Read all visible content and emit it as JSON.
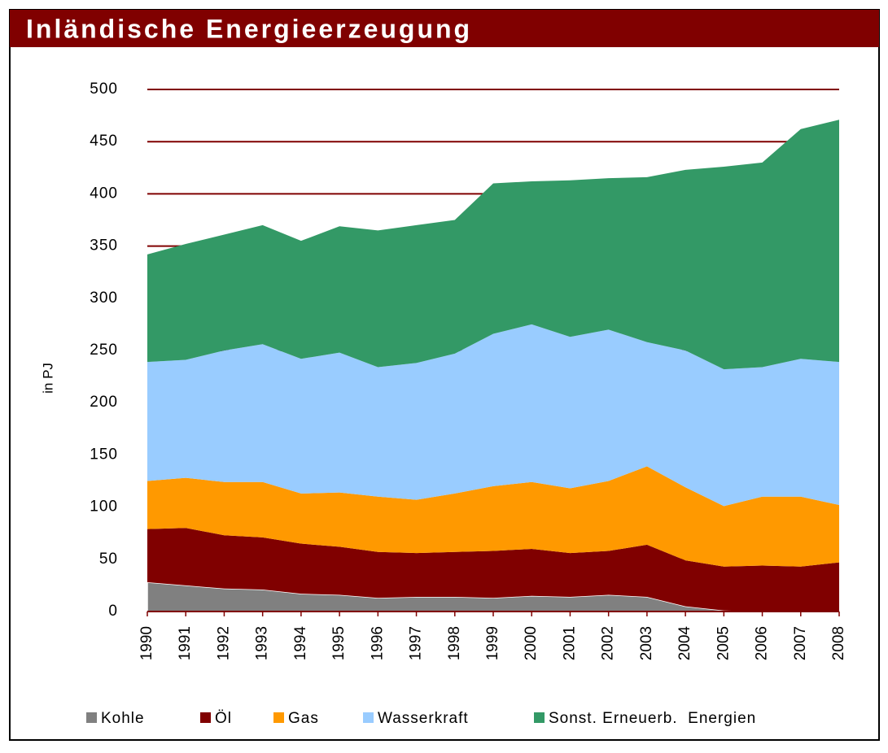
{
  "chart_data": {
    "type": "stacked_area",
    "title": "Inländische Energieerzeugung",
    "y_label": "in PJ",
    "categories": [
      "1990",
      "1991",
      "1992",
      "1993",
      "1994",
      "1995",
      "1996",
      "1997",
      "1998",
      "1999",
      "2000",
      "2001",
      "2002",
      "2003",
      "2004",
      "2005",
      "2006",
      "2007",
      "2008"
    ],
    "series": [
      {
        "name": "Kohle",
        "color": "#808080",
        "values": [
          28,
          25,
          22,
          21,
          17,
          16,
          13,
          14,
          14,
          13,
          15,
          14,
          16,
          14,
          5,
          1,
          0,
          0,
          0
        ]
      },
      {
        "name": "Öl",
        "color": "#800000",
        "values": [
          51,
          55,
          51,
          50,
          48,
          46,
          44,
          42,
          43,
          45,
          45,
          42,
          42,
          50,
          44,
          42,
          44,
          43,
          47
        ]
      },
      {
        "name": "Gas",
        "color": "#ff9900",
        "values": [
          46,
          48,
          51,
          53,
          48,
          52,
          53,
          51,
          56,
          62,
          64,
          62,
          67,
          75,
          70,
          58,
          66,
          67,
          55
        ]
      },
      {
        "name": "Wasserkraft",
        "color": "#99ccff",
        "values": [
          114,
          113,
          126,
          132,
          129,
          134,
          124,
          131,
          134,
          146,
          151,
          145,
          145,
          119,
          131,
          131,
          124,
          132,
          137
        ]
      },
      {
        "name": "Sonst. Erneuerb.  Energien",
        "color": "#339966",
        "values": [
          103,
          111,
          111,
          114,
          113,
          121,
          131,
          132,
          128,
          144,
          137,
          150,
          145,
          158,
          173,
          194,
          196,
          220,
          232
        ]
      }
    ],
    "ylim": [
      0,
      500
    ],
    "yticks": [
      0,
      50,
      100,
      150,
      200,
      250,
      300,
      350,
      400,
      450,
      500
    ],
    "grid": true,
    "legend": "bottom"
  }
}
